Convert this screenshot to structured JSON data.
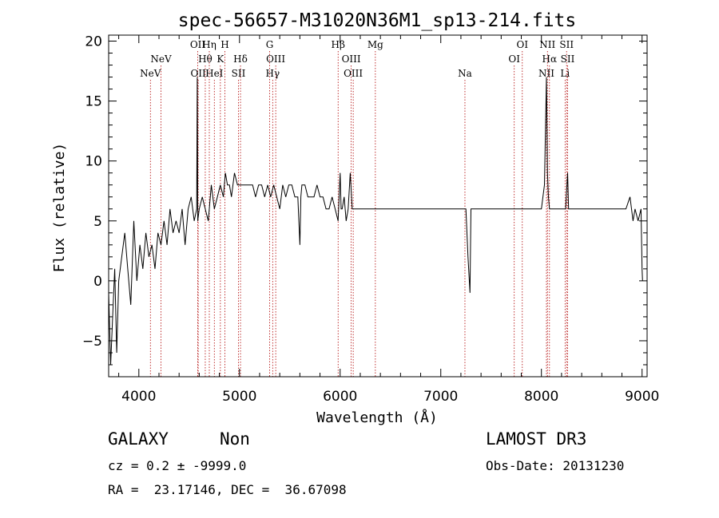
{
  "chart_data": {
    "type": "line",
    "title": "spec-56657-M31020N36M1_sp13-214.fits",
    "xlabel": "Wavelength (Å)",
    "ylabel": "Flux (relative)",
    "xlim": [
      3700,
      9050
    ],
    "ylim": [
      -8,
      20.5
    ],
    "xticks": [
      4000,
      5000,
      6000,
      7000,
      8000,
      9000
    ],
    "xtick_labels": [
      "4000",
      "5000",
      "6000",
      "7000",
      "8000",
      "9000"
    ],
    "yticks": [
      -5,
      0,
      5,
      10,
      15,
      20
    ],
    "ytick_labels": [
      "−5",
      "0",
      "5",
      "10",
      "15",
      "20"
    ],
    "spectrum": {
      "x": [
        3700,
        3720,
        3740,
        3760,
        3780,
        3800,
        3830,
        3860,
        3890,
        3920,
        3950,
        3980,
        4010,
        4040,
        4070,
        4100,
        4130,
        4160,
        4190,
        4220,
        4250,
        4280,
        4310,
        4340,
        4370,
        4400,
        4430,
        4460,
        4490,
        4520,
        4550,
        4575,
        4580,
        4585,
        4600,
        4630,
        4660,
        4690,
        4720,
        4750,
        4780,
        4810,
        4840,
        4860,
        4880,
        4900,
        4920,
        4950,
        4980,
        5010,
        5040,
        5070,
        5100,
        5130,
        5160,
        5190,
        5220,
        5250,
        5280,
        5310,
        5340,
        5370,
        5400,
        5430,
        5460,
        5490,
        5520,
        5550,
        5580,
        5600,
        5610,
        5620,
        5650,
        5680,
        5710,
        5740,
        5770,
        5800,
        5830,
        5860,
        5890,
        5920,
        5950,
        5980,
        6000,
        6010,
        6020,
        6040,
        6060,
        6080,
        6100,
        6120,
        6140,
        6170,
        6200,
        6230,
        6260,
        6290,
        6320,
        6350,
        6380,
        6410,
        6440,
        6470,
        6500,
        6550,
        6600,
        6650,
        6700,
        6750,
        6800,
        6850,
        6900,
        6950,
        7000,
        7050,
        7100,
        7150,
        7200,
        7250,
        7270,
        7290,
        7300,
        7310,
        7330,
        7360,
        7400,
        7450,
        7500,
        7550,
        7600,
        7650,
        7700,
        7750,
        7800,
        7850,
        7900,
        7950,
        8000,
        8030,
        8050,
        8060,
        8070,
        8080,
        8100,
        8150,
        8200,
        8240,
        8260,
        8270,
        8290,
        8320,
        8360,
        8400,
        8440,
        8480,
        8520,
        8560,
        8600,
        8640,
        8680,
        8720,
        8760,
        8800,
        8840,
        8880,
        8910,
        8930,
        8960,
        8990,
        9000,
        9005
      ],
      "y": [
        -1,
        -7,
        -3,
        1,
        -6,
        0,
        2,
        4,
        1,
        -2,
        5,
        0,
        3,
        1,
        4,
        2,
        3,
        1,
        4,
        3,
        5,
        3,
        6,
        4,
        5,
        4,
        6,
        3,
        6,
        7,
        5,
        6,
        17,
        5,
        6,
        7,
        6,
        5,
        8,
        6,
        7,
        8,
        7,
        9,
        8,
        8,
        7,
        9,
        8,
        8,
        8,
        8,
        8,
        8,
        7,
        8,
        8,
        7,
        8,
        7,
        8,
        7,
        6,
        8,
        7,
        8,
        8,
        7,
        7,
        3,
        7,
        8,
        8,
        7,
        7,
        7,
        8,
        7,
        7,
        6,
        6,
        7,
        6,
        5,
        9,
        6,
        6,
        7,
        5,
        6,
        9,
        6,
        6,
        6,
        6,
        6,
        6,
        6,
        6,
        6,
        6,
        6,
        6,
        6,
        6,
        6,
        6,
        6,
        6,
        6,
        6,
        6,
        6,
        6,
        6,
        6,
        6,
        6,
        6,
        6,
        2,
        -1,
        6,
        6,
        6,
        6,
        6,
        6,
        6,
        6,
        6,
        6,
        6,
        6,
        6,
        6,
        6,
        6,
        6,
        8,
        17,
        9,
        7,
        6,
        6,
        6,
        6,
        6,
        9,
        6,
        6,
        6,
        6,
        6,
        6,
        6,
        6,
        6,
        6,
        6,
        6,
        6,
        6,
        6,
        6,
        7,
        5,
        6,
        5,
        6,
        1,
        0
      ]
    },
    "emission_lines": [
      {
        "label": "NeV",
        "x": 4115,
        "row": 2
      },
      {
        "label": "NeV",
        "x": 4220,
        "row": 1
      },
      {
        "label": "OII",
        "x": 4585,
        "row": 0
      },
      {
        "label": "OII",
        "x": 4590,
        "row": 2
      },
      {
        "label": "Hθ",
        "x": 4660,
        "row": 1
      },
      {
        "label": "Hη",
        "x": 4700,
        "row": 0
      },
      {
        "label": "HeI",
        "x": 4750,
        "row": 2
      },
      {
        "label": "K",
        "x": 4810,
        "row": 1
      },
      {
        "label": "H",
        "x": 4855,
        "row": 0
      },
      {
        "label": "SII",
        "x": 4990,
        "row": 2
      },
      {
        "label": "Hδ",
        "x": 5010,
        "row": 1
      },
      {
        "label": "G",
        "x": 5300,
        "row": 0
      },
      {
        "label": "OIII",
        "x": 5360,
        "row": 1
      },
      {
        "label": "Hγ",
        "x": 5330,
        "row": 2
      },
      {
        "label": "Hβ",
        "x": 5980,
        "row": 0
      },
      {
        "label": "OIII",
        "x": 6110,
        "row": 1
      },
      {
        "label": "OIII",
        "x": 6130,
        "row": 2
      },
      {
        "label": "Mg",
        "x": 6350,
        "row": 0
      },
      {
        "label": "Na",
        "x": 7240,
        "row": 2
      },
      {
        "label": "OI",
        "x": 7810,
        "row": 0
      },
      {
        "label": "OI",
        "x": 7730,
        "row": 1
      },
      {
        "label": "NII",
        "x": 8060,
        "row": 0
      },
      {
        "label": "Hα",
        "x": 8080,
        "row": 1
      },
      {
        "label": "NII",
        "x": 8050,
        "row": 2
      },
      {
        "label": "SII",
        "x": 8250,
        "row": 0
      },
      {
        "label": "SII",
        "x": 8260,
        "row": 1
      },
      {
        "label": "Li",
        "x": 8235,
        "row": 2
      }
    ]
  },
  "info": {
    "class": "GALAXY",
    "subclass": "Non",
    "survey": "LAMOST DR3",
    "cz": "cz = 0.2 ± -9999.0",
    "obs_date": "Obs-Date: 20131230",
    "coords": "RA =  23.17146, DEC =  36.67098"
  }
}
